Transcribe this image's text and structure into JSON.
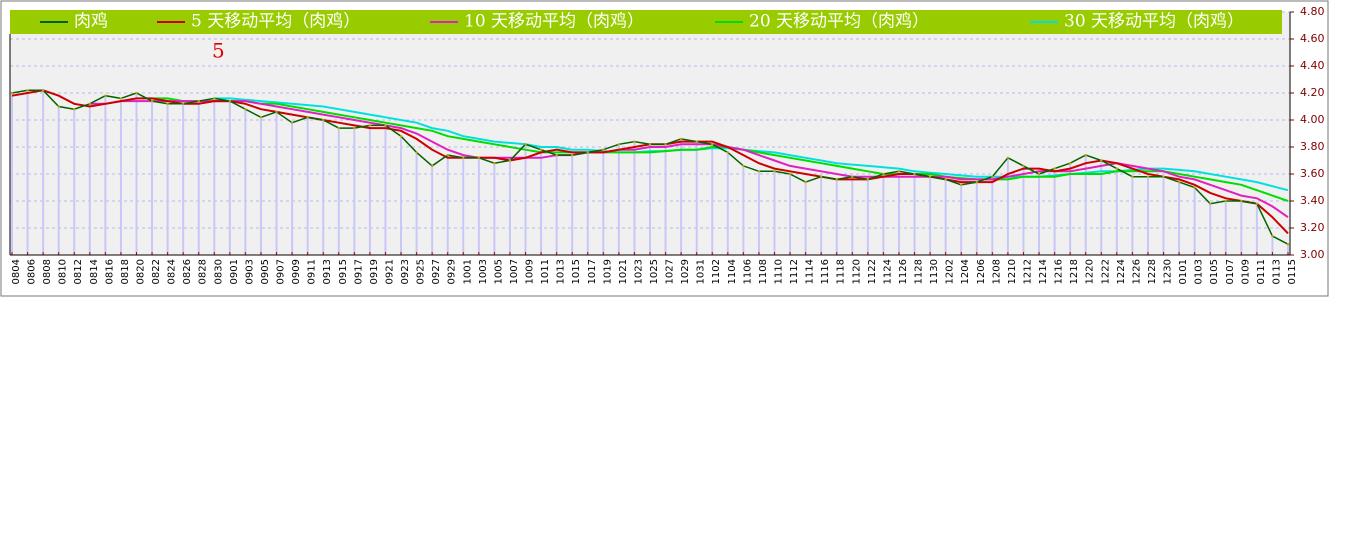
{
  "chart_data": {
    "type": "line",
    "annotation": "5",
    "categories": [
      "0804",
      "0806",
      "0808",
      "0810",
      "0812",
      "0814",
      "0816",
      "0818",
      "0820",
      "0822",
      "0824",
      "0826",
      "0828",
      "0830",
      "0901",
      "0903",
      "0905",
      "0907",
      "0909",
      "0911",
      "0913",
      "0915",
      "0917",
      "0919",
      "0921",
      "0923",
      "0925",
      "0927",
      "0929",
      "1001",
      "1003",
      "1005",
      "1007",
      "1009",
      "1011",
      "1013",
      "1015",
      "1017",
      "1019",
      "1021",
      "1023",
      "1025",
      "1027",
      "1029",
      "1031",
      "1102",
      "1104",
      "1106",
      "1108",
      "1110",
      "1112",
      "1114",
      "1116",
      "1118",
      "1120",
      "1122",
      "1124",
      "1126",
      "1128",
      "1130",
      "1202",
      "1204",
      "1206",
      "1208",
      "1210",
      "1212",
      "1214",
      "1216",
      "1218",
      "1220",
      "1222",
      "1224",
      "1226",
      "1228",
      "1230",
      "0101",
      "0103",
      "0105",
      "0107",
      "0109",
      "0111",
      "0113",
      "0115"
    ],
    "series": [
      {
        "name": "肉鸡",
        "color": "#006400",
        "values": [
          4.2,
          4.22,
          4.22,
          4.1,
          4.08,
          4.12,
          4.18,
          4.16,
          4.2,
          4.14,
          4.12,
          4.12,
          4.14,
          4.16,
          4.14,
          4.08,
          4.02,
          4.06,
          3.98,
          4.02,
          4.0,
          3.94,
          3.94,
          3.96,
          3.96,
          3.88,
          3.76,
          3.66,
          3.74,
          3.72,
          3.72,
          3.68,
          3.7,
          3.82,
          3.78,
          3.74,
          3.74,
          3.76,
          3.78,
          3.82,
          3.84,
          3.82,
          3.82,
          3.86,
          3.84,
          3.82,
          3.76,
          3.66,
          3.62,
          3.62,
          3.6,
          3.54,
          3.58,
          3.56,
          3.58,
          3.56,
          3.6,
          3.62,
          3.6,
          3.58,
          3.56,
          3.52,
          3.54,
          3.58,
          3.72,
          3.66,
          3.6,
          3.64,
          3.68,
          3.74,
          3.7,
          3.64,
          3.58,
          3.58,
          3.58,
          3.54,
          3.5,
          3.38,
          3.4,
          3.4,
          3.38,
          3.14,
          3.08
        ]
      },
      {
        "name": "5 天移动平均（肉鸡）",
        "color": "#cc0000",
        "values": [
          4.18,
          4.2,
          4.22,
          4.18,
          4.12,
          4.1,
          4.12,
          4.14,
          4.16,
          4.16,
          4.14,
          4.12,
          4.12,
          4.14,
          4.14,
          4.12,
          4.08,
          4.06,
          4.04,
          4.02,
          4.0,
          3.98,
          3.96,
          3.94,
          3.94,
          3.92,
          3.86,
          3.78,
          3.72,
          3.72,
          3.72,
          3.72,
          3.7,
          3.72,
          3.76,
          3.78,
          3.76,
          3.76,
          3.76,
          3.78,
          3.8,
          3.82,
          3.82,
          3.84,
          3.84,
          3.84,
          3.8,
          3.74,
          3.68,
          3.64,
          3.62,
          3.6,
          3.58,
          3.56,
          3.56,
          3.56,
          3.58,
          3.6,
          3.6,
          3.58,
          3.56,
          3.54,
          3.54,
          3.54,
          3.6,
          3.64,
          3.64,
          3.62,
          3.64,
          3.68,
          3.7,
          3.68,
          3.64,
          3.6,
          3.58,
          3.56,
          3.52,
          3.46,
          3.42,
          3.4,
          3.38,
          3.28,
          3.16
        ]
      },
      {
        "name": "10 天移动平均（肉鸡）",
        "color": "#e020c0",
        "values": [
          null,
          null,
          null,
          null,
          null,
          4.12,
          4.12,
          4.14,
          4.14,
          4.14,
          4.14,
          4.14,
          4.14,
          4.14,
          4.14,
          4.14,
          4.12,
          4.1,
          4.08,
          4.06,
          4.04,
          4.02,
          4.0,
          3.98,
          3.96,
          3.94,
          3.9,
          3.84,
          3.78,
          3.74,
          3.72,
          3.72,
          3.72,
          3.72,
          3.72,
          3.74,
          3.74,
          3.76,
          3.76,
          3.78,
          3.78,
          3.8,
          3.8,
          3.82,
          3.82,
          3.82,
          3.8,
          3.78,
          3.74,
          3.7,
          3.66,
          3.64,
          3.62,
          3.6,
          3.58,
          3.58,
          3.58,
          3.58,
          3.58,
          3.58,
          3.58,
          3.56,
          3.56,
          3.56,
          3.58,
          3.6,
          3.62,
          3.62,
          3.62,
          3.64,
          3.66,
          3.68,
          3.66,
          3.64,
          3.62,
          3.58,
          3.56,
          3.52,
          3.48,
          3.44,
          3.42,
          3.36,
          3.28
        ]
      },
      {
        "name": "20 天移动平均（肉鸡）",
        "color": "#00dd00",
        "values": [
          null,
          null,
          null,
          null,
          null,
          null,
          null,
          null,
          null,
          4.16,
          4.16,
          4.14,
          4.14,
          4.14,
          4.14,
          4.14,
          4.12,
          4.12,
          4.1,
          4.08,
          4.06,
          4.04,
          4.02,
          4.0,
          3.98,
          3.96,
          3.94,
          3.92,
          3.88,
          3.86,
          3.84,
          3.82,
          3.8,
          3.78,
          3.76,
          3.76,
          3.76,
          3.76,
          3.76,
          3.76,
          3.76,
          3.76,
          3.77,
          3.78,
          3.78,
          3.8,
          3.8,
          3.78,
          3.76,
          3.74,
          3.72,
          3.7,
          3.68,
          3.66,
          3.64,
          3.62,
          3.6,
          3.6,
          3.6,
          3.6,
          3.58,
          3.57,
          3.56,
          3.56,
          3.56,
          3.58,
          3.58,
          3.58,
          3.6,
          3.6,
          3.6,
          3.62,
          3.62,
          3.62,
          3.62,
          3.6,
          3.58,
          3.56,
          3.54,
          3.52,
          3.48,
          3.44,
          3.4
        ]
      },
      {
        "name": "30 天移动平均（肉鸡）",
        "color": "#00e0e0",
        "values": [
          null,
          null,
          null,
          null,
          null,
          null,
          null,
          null,
          null,
          null,
          null,
          null,
          null,
          4.16,
          4.16,
          4.15,
          4.14,
          4.13,
          4.12,
          4.11,
          4.1,
          4.08,
          4.06,
          4.04,
          4.02,
          4.0,
          3.98,
          3.94,
          3.92,
          3.88,
          3.86,
          3.84,
          3.83,
          3.82,
          3.8,
          3.8,
          3.78,
          3.78,
          3.77,
          3.76,
          3.76,
          3.77,
          3.77,
          3.78,
          3.78,
          3.79,
          3.79,
          3.78,
          3.77,
          3.76,
          3.74,
          3.72,
          3.7,
          3.68,
          3.67,
          3.66,
          3.65,
          3.64,
          3.62,
          3.61,
          3.6,
          3.59,
          3.58,
          3.58,
          3.58,
          3.58,
          3.58,
          3.59,
          3.6,
          3.61,
          3.62,
          3.62,
          3.63,
          3.64,
          3.64,
          3.63,
          3.62,
          3.6,
          3.58,
          3.56,
          3.54,
          3.51,
          3.48
        ]
      }
    ],
    "ylim": [
      3.0,
      4.8
    ],
    "yticks": [
      {
        "value": 3.0,
        "label": "3.00"
      },
      {
        "value": 3.2,
        "label": "3.20"
      },
      {
        "value": 3.4,
        "label": "3.40"
      },
      {
        "value": 3.6,
        "label": "3.60"
      },
      {
        "value": 3.8,
        "label": "3.80"
      },
      {
        "value": 4.0,
        "label": "4.00"
      },
      {
        "value": 4.2,
        "label": "4.20"
      },
      {
        "value": 4.4,
        "label": "4.40"
      },
      {
        "value": 4.6,
        "label": "4.60"
      },
      {
        "value": 4.8,
        "label": "4.80"
      }
    ],
    "grid": true,
    "bar_color": "#c8c8f8"
  }
}
